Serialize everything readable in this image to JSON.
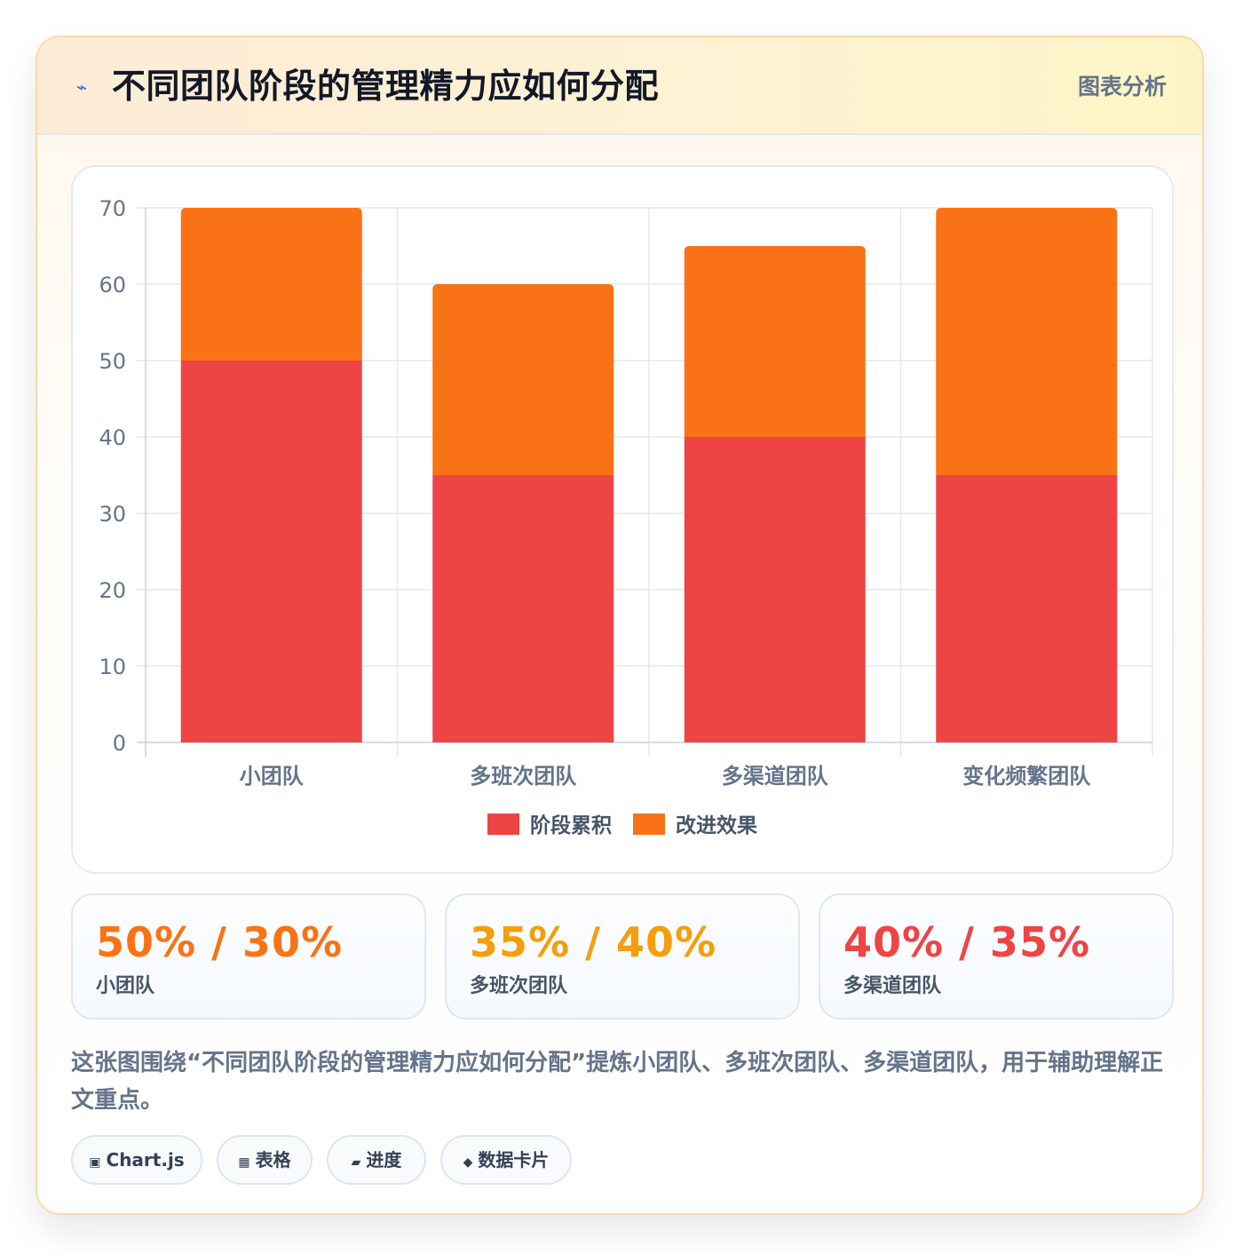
{
  "header": {
    "icon": "lightning-icon",
    "icon_glyph": "⌁",
    "title": "不同团队阶段的管理精力应如何分配",
    "tag": "图表分析"
  },
  "chart_data": {
    "type": "bar",
    "stacked": true,
    "categories": [
      "小团队",
      "多班次团队",
      "多渠道团队",
      "变化频繁团队"
    ],
    "series": [
      {
        "name": "阶段累积",
        "values": [
          50,
          35,
          40,
          35
        ],
        "color": "#ef4444"
      },
      {
        "name": "改进效果",
        "values": [
          20,
          25,
          25,
          35
        ],
        "color": "#f97316"
      }
    ],
    "ylim": [
      0,
      70
    ],
    "yticks": [
      0,
      10,
      20,
      30,
      40,
      50,
      60,
      70
    ],
    "grid": true,
    "legend": "bottom"
  },
  "stats": [
    {
      "value": "50% / 30%",
      "label": "小团队",
      "color": "#f97316"
    },
    {
      "value": "35% / 40%",
      "label": "多班次团队",
      "color": "#f59e0b"
    },
    {
      "value": "40% / 35%",
      "label": "多渠道团队",
      "color": "#ef4444"
    }
  ],
  "description": "这张图围绕“不同团队阶段的管理精力应如何分配”提炼小团队、多班次团队、多渠道团队，用于辅助理解正文重点。",
  "tags": [
    {
      "icon": "chip-icon",
      "glyph": "▣",
      "label": "Chart.js"
    },
    {
      "icon": "table-icon",
      "glyph": "▦",
      "label": "表格"
    },
    {
      "icon": "progress-icon",
      "glyph": "▰",
      "label": "进度"
    },
    {
      "icon": "diamond-icon",
      "glyph": "◆",
      "label": "数据卡片"
    }
  ]
}
